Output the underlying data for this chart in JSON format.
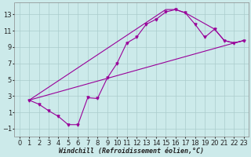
{
  "xlabel": "Windchill (Refroidissement éolien,°C)",
  "xlim": [
    -0.5,
    23.5
  ],
  "ylim": [
    -2.0,
    14.5
  ],
  "xticks": [
    0,
    1,
    2,
    3,
    4,
    5,
    6,
    7,
    8,
    9,
    10,
    11,
    12,
    13,
    14,
    15,
    16,
    17,
    18,
    19,
    20,
    21,
    22,
    23
  ],
  "yticks": [
    -1,
    1,
    3,
    5,
    7,
    9,
    11,
    13
  ],
  "background_color": "#cceaea",
  "grid_color": "#aacccc",
  "line_color": "#990099",
  "curve1_x": [
    1,
    2,
    3,
    4,
    5,
    6,
    7,
    8,
    9,
    10,
    11,
    12,
    13,
    14,
    15,
    16,
    17,
    18,
    19,
    20,
    21,
    22,
    23
  ],
  "curve1_y": [
    2.5,
    2.0,
    1.2,
    0.5,
    -0.5,
    -0.5,
    2.8,
    2.7,
    5.2,
    7.0,
    9.5,
    10.2,
    11.8,
    12.4,
    13.3,
    13.6,
    13.2,
    11.8,
    10.2,
    11.2,
    9.8,
    9.5,
    9.8
  ],
  "curve2_x": [
    1,
    22,
    23
  ],
  "curve2_y": [
    2.5,
    9.5,
    9.8
  ],
  "curve3_x": [
    1,
    15,
    16,
    17,
    20,
    21,
    22,
    23
  ],
  "curve3_y": [
    2.5,
    13.6,
    13.6,
    13.2,
    11.2,
    9.8,
    9.5,
    9.8
  ],
  "font_size": 6,
  "tick_font_size": 6
}
